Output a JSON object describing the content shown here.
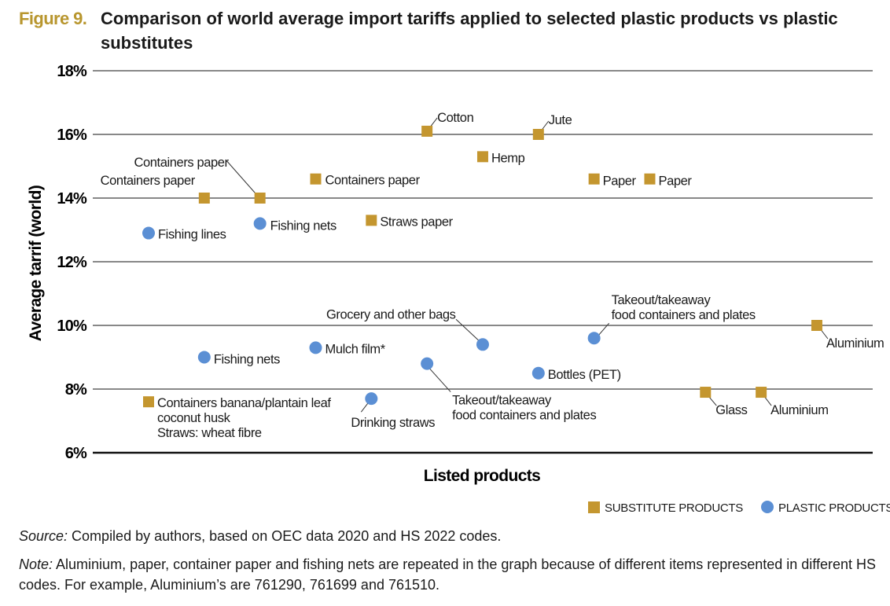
{
  "figure_label": "Figure 9.",
  "title": "Comparison of world average import tariffs applied to selected plastic products vs plastic substitutes",
  "source_label": "Source:",
  "source_text": " Compiled by authors, based on OEC data 2020 and HS 2022 codes.",
  "note_label": "Note:",
  "note_text": " Aluminium, paper, container paper and fishing nets are repeated in the graph because of different items represented in different HS codes. For example, Aluminium’s are 761290, 761699 and 761510.",
  "colors": {
    "substitute": "#C4962F",
    "plastic": "#5B8FD4",
    "figure_label": "#B8962E"
  },
  "chart_data": {
    "type": "scatter",
    "xlabel": "Listed products",
    "ylabel": "Average tarrif (world)",
    "ylim": [
      6,
      18
    ],
    "yticks": [
      "6%",
      "8%",
      "10%",
      "12%",
      "14%",
      "16%",
      "18%"
    ],
    "ytick_values": [
      6,
      8,
      10,
      12,
      14,
      16,
      18
    ],
    "grid": true,
    "legend_position": "bottom-right",
    "x_note": "categorical product positions 1-13, no tick labels printed",
    "series": [
      {
        "name": "SUBSTITUTE PRODUCTS",
        "marker": "square",
        "points": [
          {
            "x": 1,
            "y": 7.6,
            "label": [
              "Containers banana/plantain leaf",
              "coconut husk",
              "Straws: wheat fibre"
            ]
          },
          {
            "x": 2,
            "y": 14.0,
            "label": [
              "Containers paper"
            ]
          },
          {
            "x": 3,
            "y": 14.0,
            "label": [
              "Containers paper"
            ]
          },
          {
            "x": 4,
            "y": 14.6,
            "label": [
              "Containers paper"
            ]
          },
          {
            "x": 5,
            "y": 13.3,
            "label": [
              "Straws paper"
            ]
          },
          {
            "x": 6,
            "y": 16.1,
            "label": [
              "Cotton"
            ]
          },
          {
            "x": 7,
            "y": 15.3,
            "label": [
              "Hemp"
            ]
          },
          {
            "x": 8,
            "y": 16.0,
            "label": [
              "Jute"
            ]
          },
          {
            "x": 9,
            "y": 14.6,
            "label": [
              "Paper"
            ]
          },
          {
            "x": 10,
            "y": 14.6,
            "label": [
              "Paper"
            ]
          },
          {
            "x": 11,
            "y": 7.9,
            "label": [
              "Glass"
            ]
          },
          {
            "x": 12,
            "y": 7.9,
            "label": [
              "Aluminium"
            ]
          },
          {
            "x": 13,
            "y": 10.0,
            "label": [
              "Aluminium"
            ]
          }
        ]
      },
      {
        "name": "PLASTIC PRODUCTS",
        "marker": "circle",
        "points": [
          {
            "x": 1,
            "y": 12.9,
            "label": [
              "Fishing lines"
            ]
          },
          {
            "x": 2,
            "y": 9.0,
            "label": [
              "Fishing nets"
            ]
          },
          {
            "x": 3,
            "y": 13.2,
            "label": [
              "Fishing nets"
            ]
          },
          {
            "x": 4,
            "y": 9.3,
            "label": [
              "Mulch film*"
            ]
          },
          {
            "x": 5,
            "y": 7.7,
            "label": [
              "Drinking straws"
            ]
          },
          {
            "x": 6,
            "y": 8.8,
            "label": [
              "Takeout/takeaway",
              "food containers and plates"
            ]
          },
          {
            "x": 7,
            "y": 9.4,
            "label": [
              "Grocery and other bags"
            ]
          },
          {
            "x": 8,
            "y": 8.5,
            "label": [
              "Bottles (PET)"
            ]
          },
          {
            "x": 9,
            "y": 9.6,
            "label": [
              "Takeout/takeaway",
              "food containers and plates"
            ]
          }
        ]
      }
    ]
  }
}
